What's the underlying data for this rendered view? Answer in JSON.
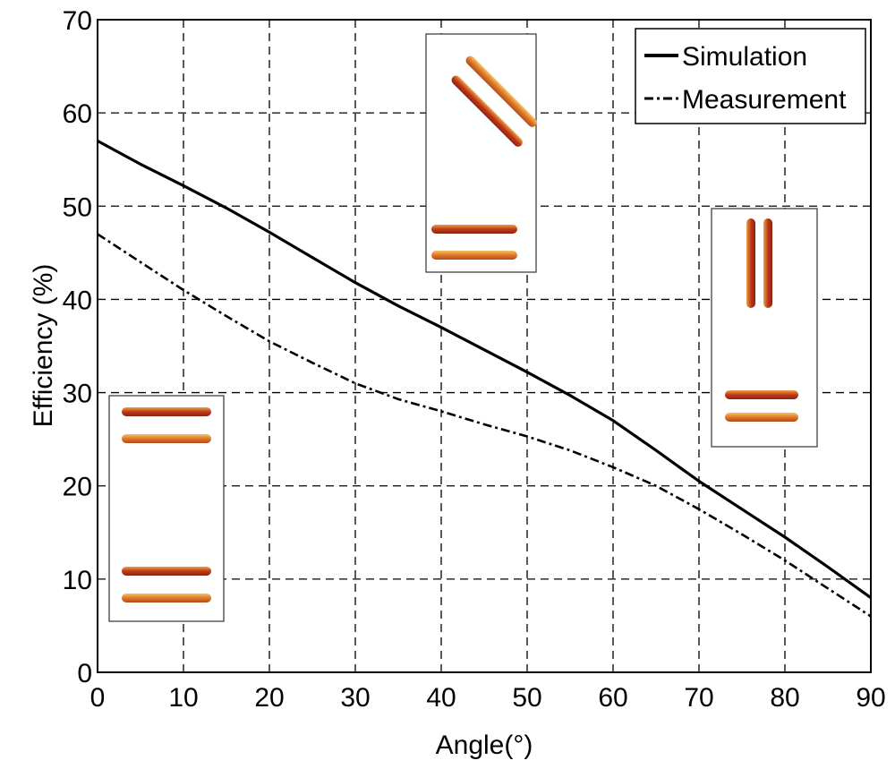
{
  "chart_data": {
    "type": "line",
    "title": "",
    "xlabel": "Angle(°)",
    "ylabel": "Efficiency (%)",
    "xlim": [
      0,
      90
    ],
    "ylim": [
      0,
      70
    ],
    "xticks": [
      0,
      10,
      20,
      30,
      40,
      50,
      60,
      70,
      80,
      90
    ],
    "yticks": [
      0,
      10,
      20,
      30,
      40,
      50,
      60,
      70
    ],
    "grid": true,
    "legend_position": "top-right",
    "series": [
      {
        "name": "Simulation",
        "style": "solid",
        "x": [
          0,
          5,
          10,
          15,
          20,
          25,
          30,
          35,
          40,
          45,
          50,
          55,
          60,
          65,
          70,
          75,
          80,
          85,
          90
        ],
        "y": [
          57,
          54.5,
          52.2,
          49.8,
          47.2,
          44.5,
          41.8,
          39.3,
          37,
          34.6,
          32.2,
          29.7,
          27,
          23.8,
          20.5,
          17.5,
          14.5,
          11.3,
          8
        ]
      },
      {
        "name": "Measurement",
        "style": "dash-dot",
        "x": [
          0,
          5,
          10,
          15,
          20,
          25,
          30,
          35,
          40,
          45,
          50,
          55,
          60,
          65,
          70,
          75,
          80,
          85,
          90
        ],
        "y": [
          47,
          44,
          41,
          38.2,
          35.5,
          33.2,
          31,
          29.3,
          28,
          26.6,
          25.3,
          23.8,
          22,
          20,
          17.5,
          14.8,
          12,
          9,
          6
        ]
      }
    ],
    "colors": {
      "line": "#000000",
      "grid": "#000000",
      "rod_dark": "#c0391b",
      "rod_light": "#e8932a"
    },
    "insets": [
      {
        "name": "inset-parallel-horizontal",
        "rods": [
          "horizontal",
          "horizontal",
          "horizontal",
          "horizontal"
        ]
      },
      {
        "name": "inset-tilted",
        "rods": [
          "diagonal",
          "diagonal",
          "horizontal",
          "horizontal"
        ]
      },
      {
        "name": "inset-vertical-horizontal",
        "rods": [
          "vertical",
          "vertical",
          "horizontal",
          "horizontal"
        ]
      }
    ]
  }
}
